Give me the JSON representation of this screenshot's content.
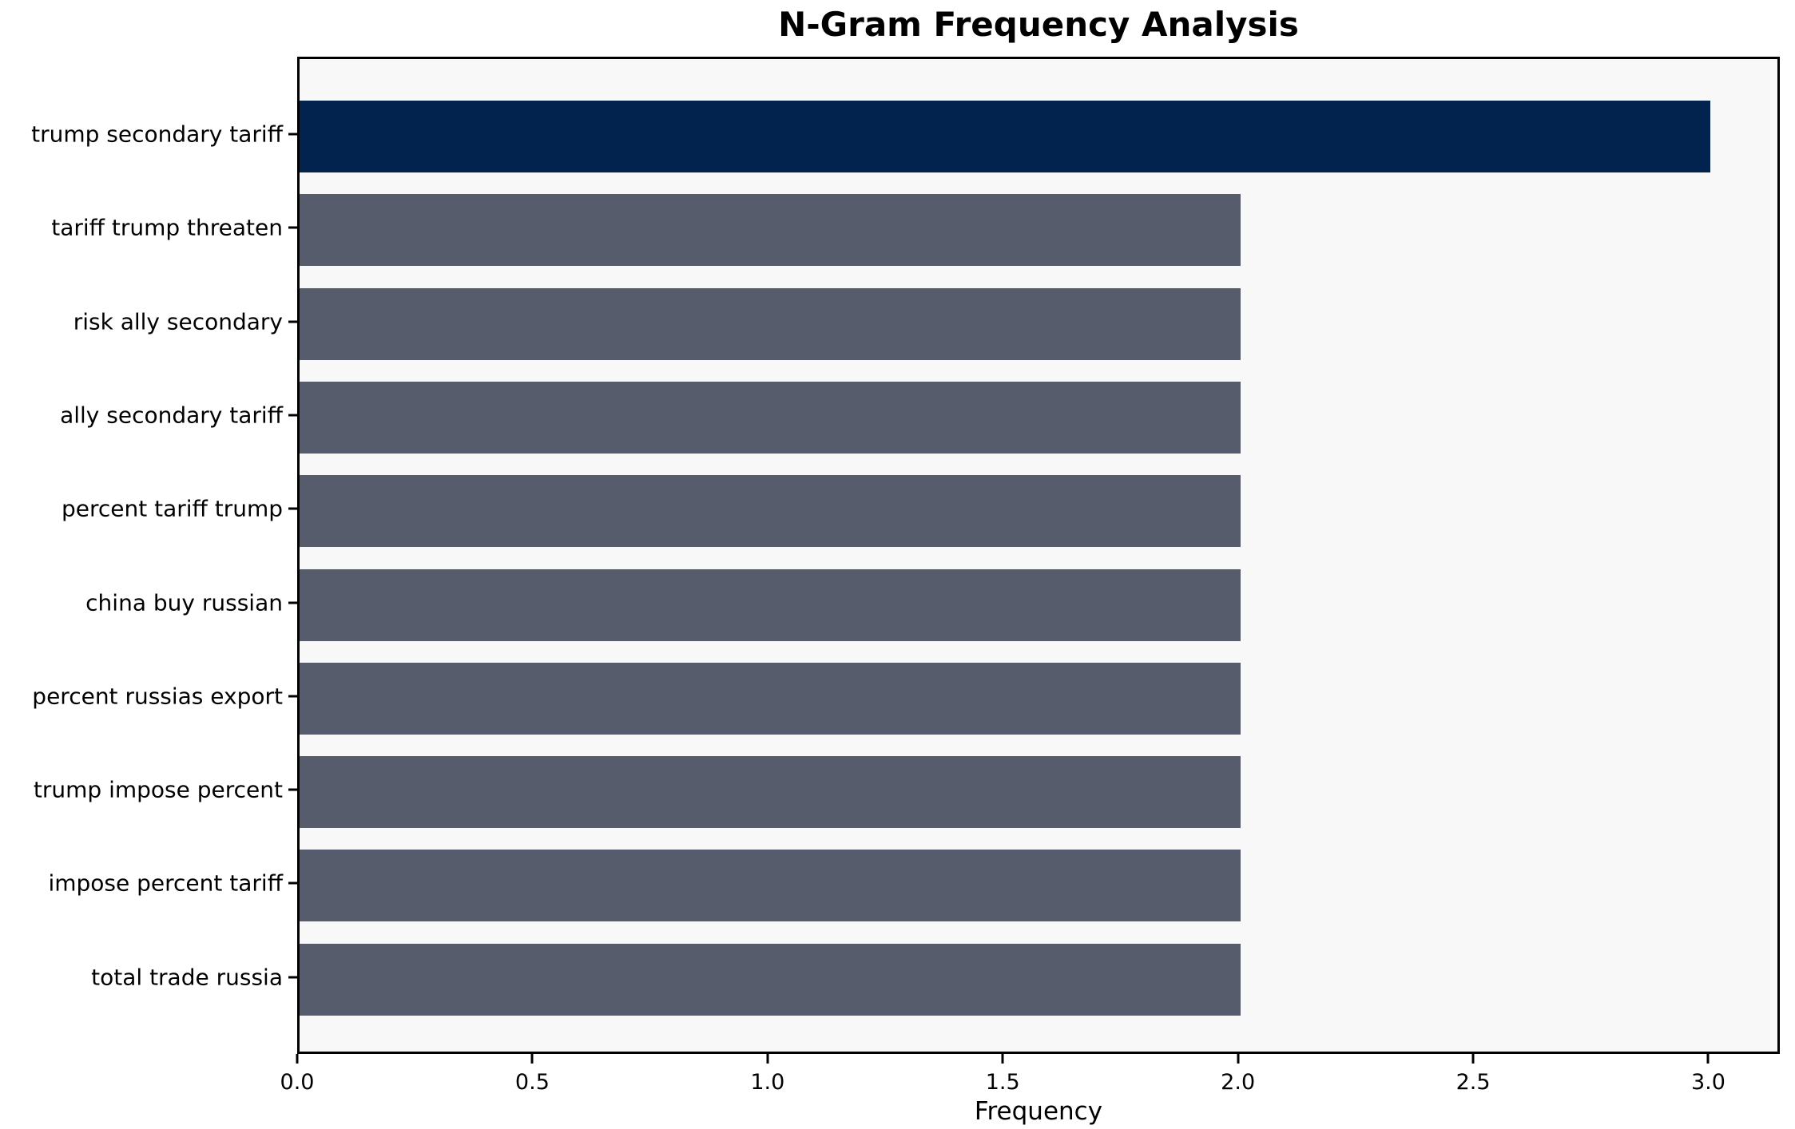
{
  "chart_data": {
    "type": "bar",
    "orientation": "horizontal",
    "title": "N-Gram Frequency Analysis",
    "xlabel": "Frequency",
    "ylabel": "",
    "categories": [
      "trump secondary tariff",
      "tariff trump threaten",
      "risk ally secondary",
      "ally secondary tariff",
      "percent tariff trump",
      "china buy russian",
      "percent russias export",
      "trump impose percent",
      "impose percent tariff",
      "total trade russia"
    ],
    "values": [
      3,
      2,
      2,
      2,
      2,
      2,
      2,
      2,
      2,
      2
    ],
    "bar_colors": [
      "#02234d",
      "#565c6b",
      "#565c6b",
      "#565c6b",
      "#565c6b",
      "#565c6b",
      "#565c6b",
      "#565c6b",
      "#565c6b",
      "#565c6b"
    ],
    "xlim": [
      0,
      3.152
    ],
    "xticks": [
      0.0,
      0.5,
      1.0,
      1.5,
      2.0,
      2.5,
      3.0
    ],
    "xtick_labels": [
      "0.0",
      "0.5",
      "1.0",
      "1.5",
      "2.0",
      "2.5",
      "3.0"
    ],
    "grid": false,
    "legend": null,
    "colors": {
      "highlight_bar": "#02234d",
      "default_bar": "#565c6b",
      "plot_background": "#f8f8f9",
      "figure_background": "#ffffff",
      "spine": "#000000",
      "text": "#000000"
    }
  }
}
